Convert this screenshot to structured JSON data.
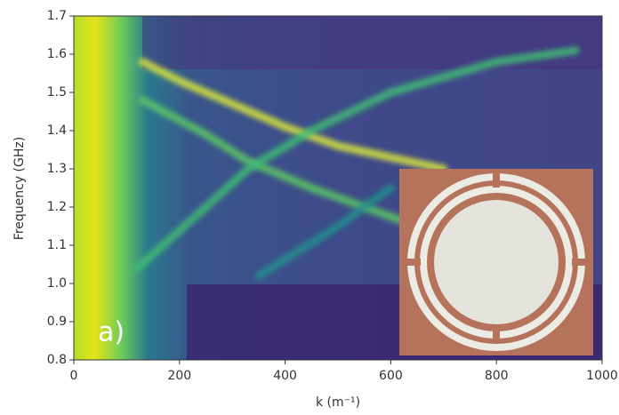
{
  "chart_data": {
    "type": "line",
    "y_label": "Frequency (GHz)",
    "x_label": "k (m⁻¹)",
    "annotation": "a)",
    "xlim": [
      0,
      1000
    ],
    "xticks": [
      0,
      200,
      400,
      600,
      800,
      1000
    ],
    "ylim": [
      0.8,
      1.7
    ],
    "yticks": [
      0.8,
      0.9,
      {
        "value": 1,
        "label": "1.0"
      },
      1.1,
      1.2,
      1.3,
      1.4,
      1.5,
      1.6,
      1.7
    ],
    "series": [
      {
        "color": "#d9e53a",
        "x": [
          130,
          200,
          300,
          400,
          500,
          600,
          700
        ],
        "values": [
          1.58,
          1.53,
          1.47,
          1.41,
          1.36,
          1.33,
          1.3
        ]
      },
      {
        "color": "#5cc863",
        "x": [
          130,
          250,
          330,
          450,
          550,
          650
        ],
        "values": [
          1.48,
          1.39,
          1.32,
          1.25,
          1.2,
          1.15
        ]
      },
      {
        "color": "#3fbc73",
        "x": [
          120,
          250,
          330,
          450,
          600,
          800,
          950
        ],
        "values": [
          1.04,
          1.2,
          1.3,
          1.4,
          1.5,
          1.58,
          1.61
        ]
      },
      {
        "color": "#21908d",
        "x": [
          350,
          500,
          600
        ],
        "values": [
          1.02,
          1.15,
          1.25
        ]
      }
    ]
  }
}
